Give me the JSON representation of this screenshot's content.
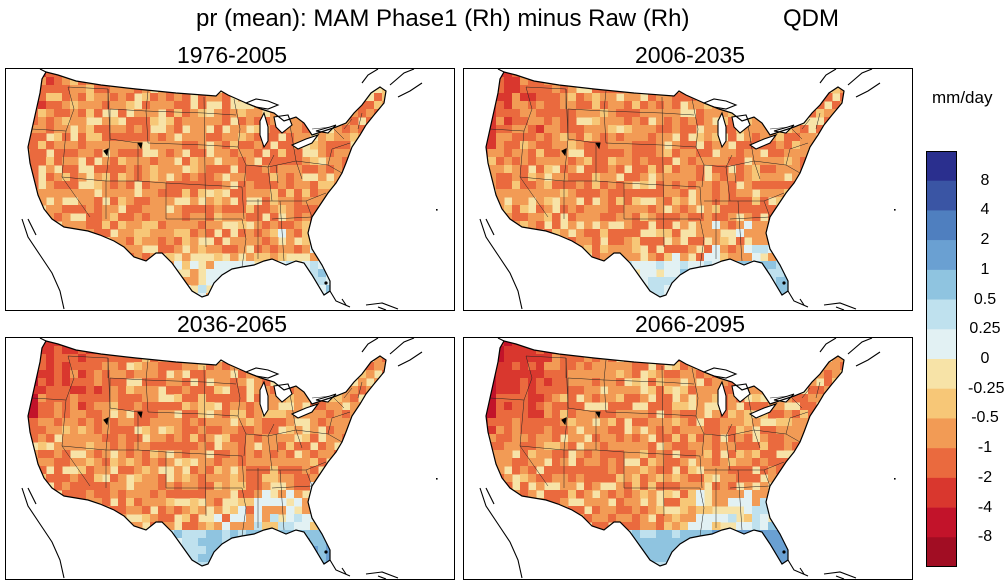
{
  "title": {
    "main": "pr (mean): MAM Phase1 (Rh) minus Raw (Rh)",
    "method": "QDM"
  },
  "panels": [
    {
      "period": "1976-2005"
    },
    {
      "period": "2006-2035"
    },
    {
      "period": "2036-2065"
    },
    {
      "period": "2066-2095"
    }
  ],
  "colorbar": {
    "units": "mm/day",
    "labels": [
      "8",
      "4",
      "2",
      "1",
      "0.5",
      "0.25",
      "0",
      "-0.25",
      "-0.5",
      "-1",
      "-2",
      "-4",
      "-8"
    ],
    "colors": [
      "#2a2f8e",
      "#3a55a4",
      "#4f7fbf",
      "#6aa0d2",
      "#8fc4e0",
      "#bfe1ee",
      "#e2f1f3",
      "#f7e3a7",
      "#f7c777",
      "#f29b55",
      "#ea6a3e",
      "#d9372e",
      "#c2132a",
      "#a10d23"
    ],
    "ocean_color": "#ffffff",
    "border_color": "#000000"
  }
}
